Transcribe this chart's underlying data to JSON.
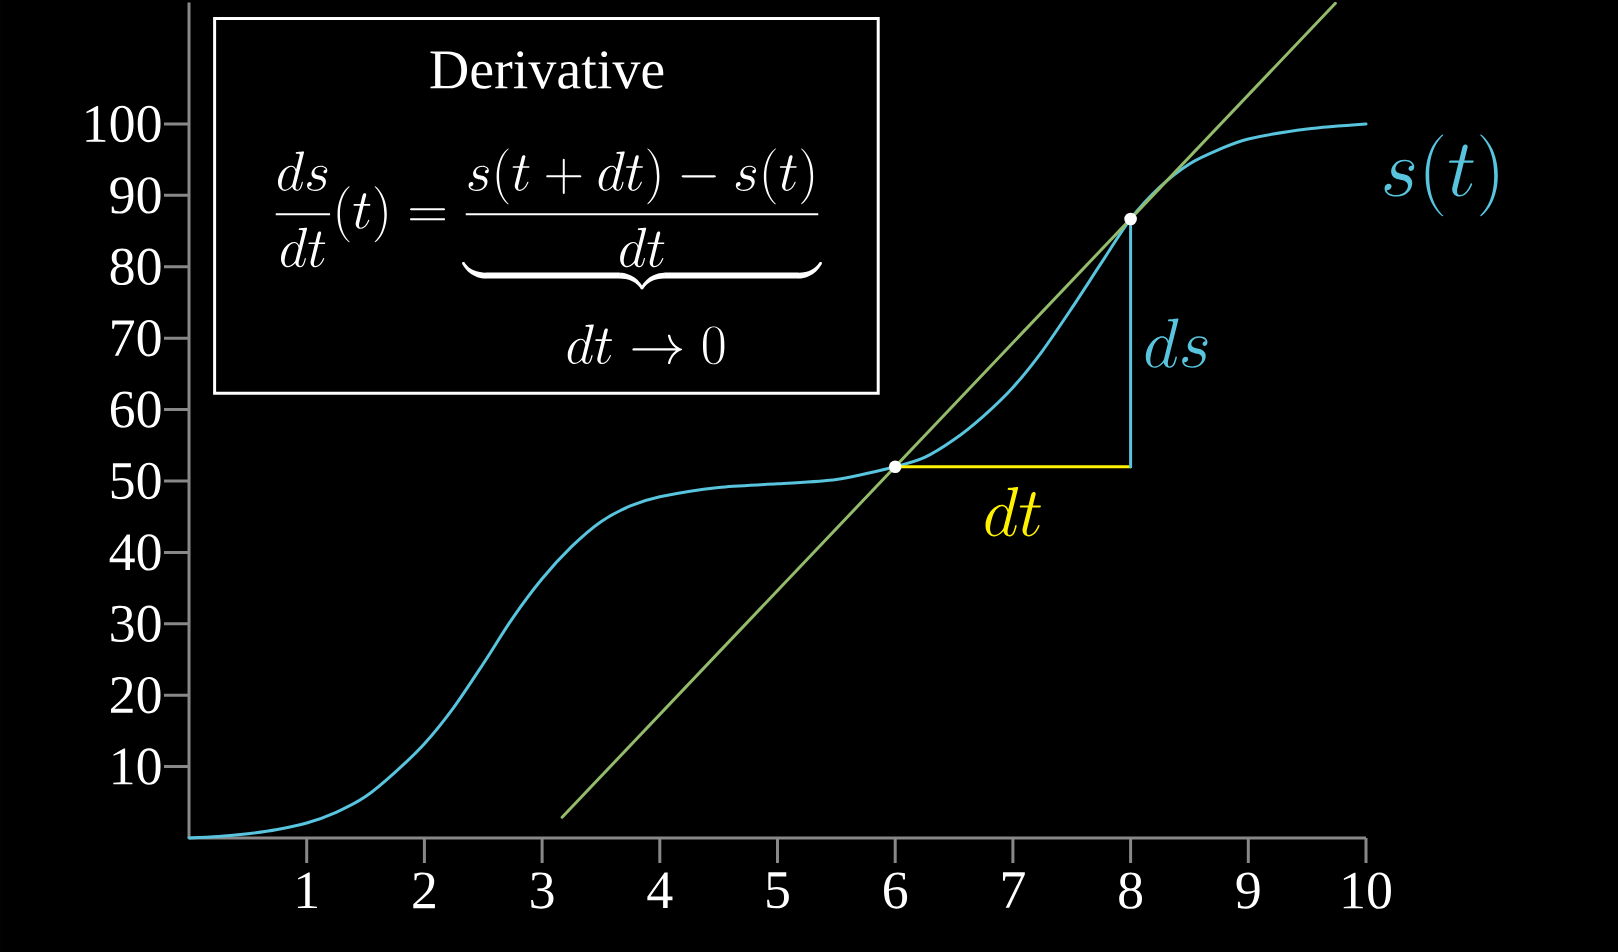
{
  "chart_data": {
    "type": "line",
    "title": "Derivative",
    "annotations": [
      "\\frac{ds}{dt}(t) = \\underbrace{\\frac{s(t+dt)-s(t)}{dt}}",
      "dt \\to 0"
    ],
    "xlim": [
      0,
      10
    ],
    "ylim": [
      0,
      117
    ],
    "xticks": [
      1,
      2,
      3,
      4,
      5,
      6,
      7,
      8,
      9,
      10
    ],
    "yticks": [
      10,
      20,
      30,
      40,
      50,
      60,
      70,
      80,
      90,
      100
    ],
    "series": [
      {
        "name": "s(t)",
        "color": "#58c4dd",
        "x": [
          0,
          0.25,
          0.5,
          0.75,
          1,
          1.25,
          1.5,
          1.75,
          2,
          2.25,
          2.5,
          2.75,
          3,
          3.25,
          3.5,
          3.75,
          4,
          4.5,
          5,
          5.5,
          6,
          6.25,
          6.5,
          6.75,
          7,
          7.25,
          7.5,
          7.75,
          8,
          8.25,
          8.5,
          8.75,
          9,
          9.5,
          10
        ],
        "values": [
          0,
          0.2,
          0.6,
          1.2,
          2.1,
          3.6,
          5.8,
          9.2,
          13.2,
          18.3,
          24.4,
          30.8,
          36.3,
          40.8,
          44.3,
          46.5,
          47.8,
          49.1,
          49.6,
          50.2,
          52,
          53.3,
          55.8,
          59.1,
          63.1,
          68.2,
          74.2,
          80.5,
          86.7,
          91.2,
          94.4,
          96.4,
          97.9,
          99.3,
          100
        ]
      },
      {
        "color": "#93bb6b",
        "x": [
          3.17,
          9.74
        ],
        "values": [
          2.9,
          116.9
        ]
      },
      {
        "name": "dt",
        "color": "#fff200",
        "x": [
          6,
          8
        ],
        "values": [
          52,
          52
        ]
      },
      {
        "name": "ds",
        "color": "#58c4dd",
        "x": [
          8,
          8
        ],
        "values": [
          52,
          86.7
        ]
      },
      {
        "type": "scatter",
        "marker": "circle",
        "color": "#ffffff",
        "x": [
          6,
          8
        ],
        "values": [
          52,
          86.7
        ]
      }
    ]
  }
}
